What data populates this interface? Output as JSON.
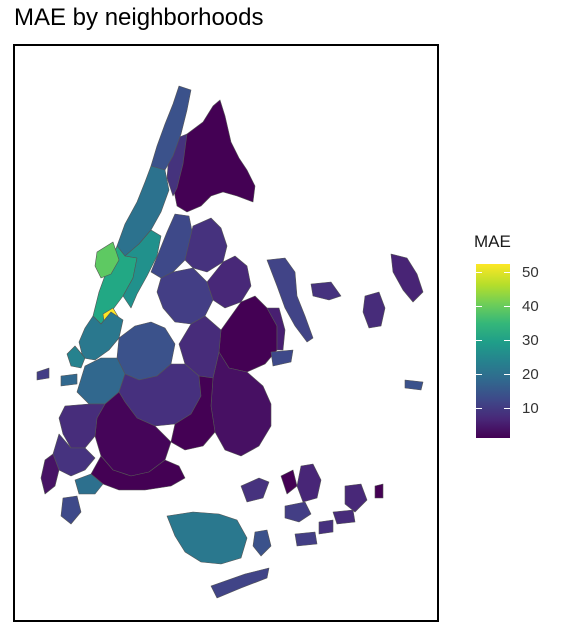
{
  "title": "MAE by neighborhoods",
  "legend": {
    "title": "MAE",
    "ticks": [
      50,
      40,
      30,
      20,
      10
    ],
    "range": [
      1,
      52
    ],
    "colormap": "viridis",
    "colors": [
      "#440154",
      "#482878",
      "#3e4989",
      "#31688e",
      "#26828e",
      "#1f9e89",
      "#35b779",
      "#6ece58",
      "#b5de2b",
      "#fde725"
    ]
  },
  "map": {
    "type": "choropleth",
    "region": "New York City neighborhoods",
    "border_color": "#555555",
    "notable": {
      "highest_value_area": "midtown Manhattan",
      "highest_value": 50
    }
  }
}
